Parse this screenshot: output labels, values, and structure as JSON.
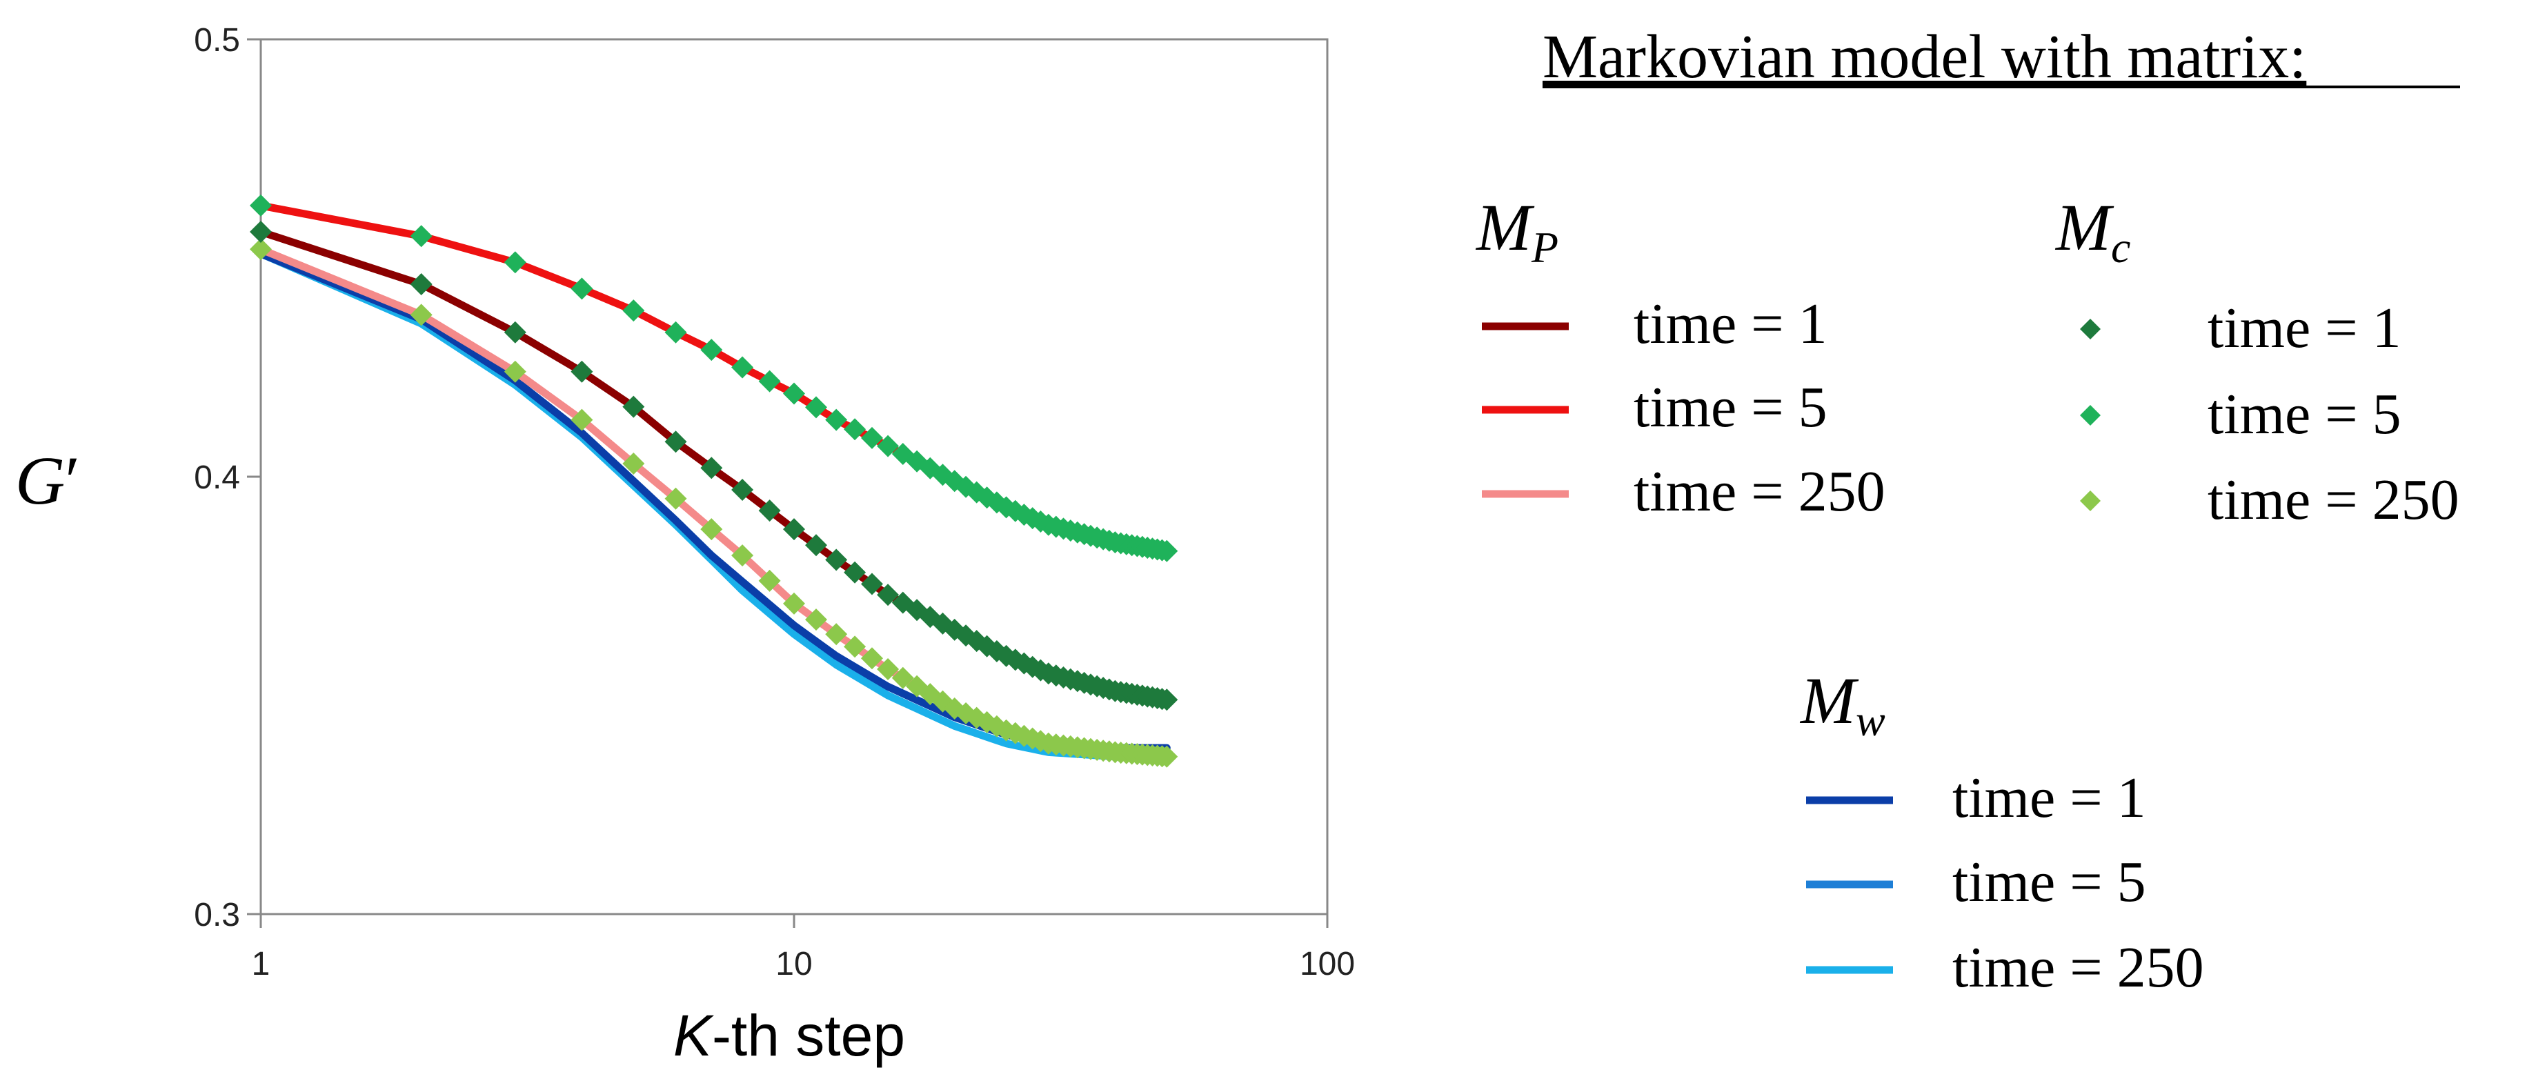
{
  "chart_data": {
    "type": "line",
    "title": "Markovian model with matrix:",
    "xlabel_italic": "K",
    "xlabel_rest": "-th step",
    "ylabel_main": "G",
    "ylabel_prime": "′",
    "xscale": "log",
    "xlim": [
      1,
      100
    ],
    "ylim": [
      0.3,
      0.5
    ],
    "xticks": [
      1,
      10,
      100
    ],
    "xtick_labels": [
      "1",
      "10",
      "100"
    ],
    "yticks": [
      0.3,
      0.4,
      0.5
    ],
    "ytick_labels": [
      "0.3",
      "0.4",
      "0.5"
    ],
    "grid": false,
    "legend_position": "right",
    "x": [
      1,
      2,
      3,
      4,
      5,
      6,
      7,
      8,
      9,
      10,
      11,
      12,
      13,
      14,
      15,
      16,
      17,
      18,
      19,
      20,
      21,
      22,
      23,
      24,
      25,
      26,
      27,
      28,
      29,
      30,
      31,
      32,
      33,
      34,
      35,
      36,
      37,
      38,
      39,
      40,
      41,
      42,
      43,
      44,
      45,
      46,
      47,
      48,
      49,
      50
    ],
    "groups": [
      {
        "name_main": "M",
        "name_sub": "P",
        "style": "line",
        "series": [
          {
            "label": "time = 1",
            "color": "#8b0000",
            "anchors": [
              [
                1,
                0.456
              ],
              [
                2,
                0.444
              ],
              [
                3,
                0.433
              ],
              [
                4,
                0.424
              ],
              [
                5,
                0.416
              ],
              [
                6,
                0.408
              ],
              [
                7,
                0.402
              ],
              [
                8,
                0.397
              ],
              [
                10,
                0.388
              ],
              [
                12,
                0.381
              ],
              [
                15,
                0.373
              ],
              [
                20,
                0.365
              ],
              [
                25,
                0.359
              ],
              [
                30,
                0.355
              ],
              [
                40,
                0.351
              ],
              [
                50,
                0.349
              ]
            ]
          },
          {
            "label": "time = 5",
            "color": "#ee1111",
            "anchors": [
              [
                1,
                0.462
              ],
              [
                2,
                0.455
              ],
              [
                3,
                0.449
              ],
              [
                4,
                0.443
              ],
              [
                5,
                0.438
              ],
              [
                6,
                0.433
              ],
              [
                7,
                0.429
              ],
              [
                8,
                0.425
              ],
              [
                10,
                0.419
              ],
              [
                12,
                0.413
              ],
              [
                15,
                0.407
              ],
              [
                20,
                0.399
              ],
              [
                25,
                0.393
              ],
              [
                30,
                0.389
              ],
              [
                40,
                0.385
              ],
              [
                50,
                0.383
              ]
            ]
          },
          {
            "label": "time = 250",
            "color": "#f48a8a",
            "anchors": [
              [
                1,
                0.452
              ],
              [
                2,
                0.437
              ],
              [
                3,
                0.424
              ],
              [
                4,
                0.413
              ],
              [
                5,
                0.403
              ],
              [
                6,
                0.395
              ],
              [
                7,
                0.388
              ],
              [
                8,
                0.382
              ],
              [
                10,
                0.371
              ],
              [
                12,
                0.364
              ],
              [
                15,
                0.356
              ],
              [
                20,
                0.347
              ],
              [
                25,
                0.342
              ],
              [
                30,
                0.339
              ],
              [
                40,
                0.337
              ],
              [
                50,
                0.336
              ]
            ]
          }
        ]
      },
      {
        "name_main": "M",
        "name_sub": "c",
        "style": "marker",
        "series": [
          {
            "label": "time = 1",
            "color": "#1e7a3c",
            "anchors": [
              [
                1,
                0.456
              ],
              [
                2,
                0.444
              ],
              [
                3,
                0.433
              ],
              [
                4,
                0.424
              ],
              [
                5,
                0.416
              ],
              [
                6,
                0.408
              ],
              [
                7,
                0.402
              ],
              [
                8,
                0.397
              ],
              [
                10,
                0.388
              ],
              [
                12,
                0.381
              ],
              [
                15,
                0.373
              ],
              [
                20,
                0.365
              ],
              [
                25,
                0.359
              ],
              [
                30,
                0.355
              ],
              [
                40,
                0.351
              ],
              [
                50,
                0.349
              ]
            ]
          },
          {
            "label": "time = 5",
            "color": "#1fb25a",
            "anchors": [
              [
                1,
                0.462
              ],
              [
                2,
                0.455
              ],
              [
                3,
                0.449
              ],
              [
                4,
                0.443
              ],
              [
                5,
                0.438
              ],
              [
                6,
                0.433
              ],
              [
                7,
                0.429
              ],
              [
                8,
                0.425
              ],
              [
                10,
                0.419
              ],
              [
                12,
                0.413
              ],
              [
                15,
                0.407
              ],
              [
                20,
                0.399
              ],
              [
                25,
                0.393
              ],
              [
                30,
                0.389
              ],
              [
                40,
                0.385
              ],
              [
                50,
                0.383
              ]
            ]
          },
          {
            "label": "time = 250",
            "color": "#8cc84b",
            "anchors": [
              [
                1,
                0.452
              ],
              [
                2,
                0.437
              ],
              [
                3,
                0.424
              ],
              [
                4,
                0.413
              ],
              [
                5,
                0.403
              ],
              [
                6,
                0.395
              ],
              [
                7,
                0.388
              ],
              [
                8,
                0.382
              ],
              [
                10,
                0.371
              ],
              [
                12,
                0.364
              ],
              [
                15,
                0.356
              ],
              [
                20,
                0.347
              ],
              [
                25,
                0.342
              ],
              [
                30,
                0.339
              ],
              [
                40,
                0.337
              ],
              [
                50,
                0.336
              ]
            ]
          }
        ]
      },
      {
        "name_main": "M",
        "name_sub": "w",
        "style": "line",
        "series": [
          {
            "label": "time = 1",
            "color": "#0b3ea8",
            "anchors": [
              [
                1,
                0.451
              ],
              [
                2,
                0.436
              ],
              [
                3,
                0.422
              ],
              [
                4,
                0.41
              ],
              [
                5,
                0.399
              ],
              [
                6,
                0.39
              ],
              [
                7,
                0.382
              ],
              [
                8,
                0.376
              ],
              [
                10,
                0.366
              ],
              [
                12,
                0.359
              ],
              [
                15,
                0.352
              ],
              [
                20,
                0.345
              ],
              [
                25,
                0.341
              ],
              [
                30,
                0.339
              ],
              [
                40,
                0.338
              ],
              [
                50,
                0.338
              ]
            ]
          },
          {
            "label": "time = 5",
            "color": "#1e7fd6",
            "anchors": [
              [
                1,
                0.451
              ],
              [
                2,
                0.436
              ],
              [
                3,
                0.422
              ],
              [
                4,
                0.41
              ],
              [
                5,
                0.399
              ],
              [
                6,
                0.39
              ],
              [
                7,
                0.382
              ],
              [
                8,
                0.376
              ],
              [
                10,
                0.366
              ],
              [
                12,
                0.359
              ],
              [
                15,
                0.352
              ],
              [
                20,
                0.345
              ],
              [
                25,
                0.341
              ],
              [
                30,
                0.339
              ],
              [
                40,
                0.337
              ],
              [
                50,
                0.337
              ]
            ]
          },
          {
            "label": "time = 250",
            "color": "#1ab0ea",
            "anchors": [
              [
                1,
                0.451
              ],
              [
                2,
                0.435
              ],
              [
                3,
                0.421
              ],
              [
                4,
                0.409
              ],
              [
                5,
                0.398
              ],
              [
                6,
                0.389
              ],
              [
                7,
                0.381
              ],
              [
                8,
                0.374
              ],
              [
                10,
                0.364
              ],
              [
                12,
                0.357
              ],
              [
                15,
                0.35
              ],
              [
                20,
                0.343
              ],
              [
                25,
                0.339
              ],
              [
                30,
                0.337
              ],
              [
                40,
                0.336
              ],
              [
                50,
                0.336
              ]
            ]
          }
        ]
      }
    ]
  }
}
